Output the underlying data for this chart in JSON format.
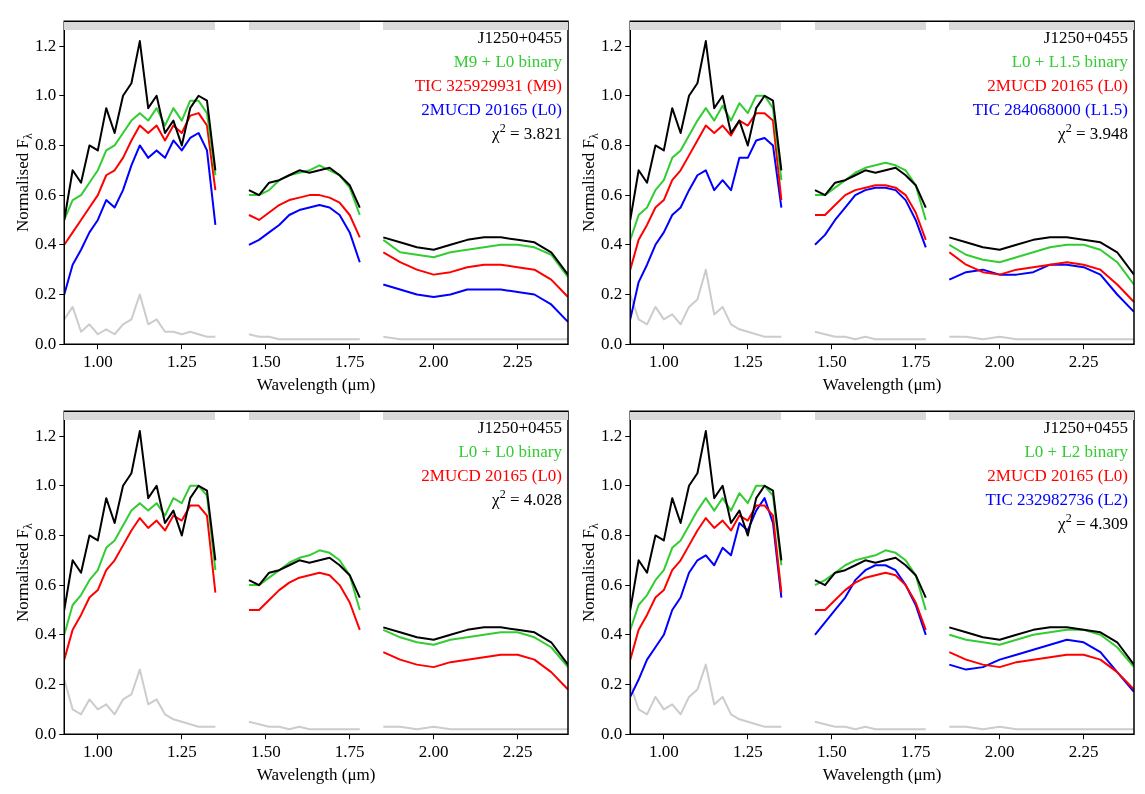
{
  "chart_data": [
    {
      "type": "line",
      "xlabel": "Wavelength (μm)",
      "ylabel": "Normalised F$_{λ}$",
      "xlim": [
        0.9,
        2.4
      ],
      "ylim": [
        0,
        1.3
      ],
      "xticks": [
        {
          "value": 1,
          "label": "1.00"
        },
        {
          "value": 1.25,
          "label": "1.25"
        },
        {
          "value": 1.5,
          "label": "1.50"
        },
        {
          "value": 1.75,
          "label": "1.75"
        },
        {
          "value": 2,
          "label": "2.00"
        },
        {
          "value": 2.25,
          "label": "2.25"
        }
      ],
      "yticks": [
        {
          "value": 0,
          "label": "0.0"
        },
        {
          "value": 0.2,
          "label": "0.2"
        },
        {
          "value": 0.4,
          "label": "0.4"
        },
        {
          "value": 0.6,
          "label": "0.6"
        },
        {
          "value": 0.8,
          "label": "0.8"
        },
        {
          "value": 1,
          "label": "1.0"
        },
        {
          "value": 1.2,
          "label": "1.2"
        }
      ],
      "legend": "top right",
      "marker": "none",
      "line_style": "solid",
      "grid": false,
      "annotations": [
        "χ$^{2}$ = 3.821"
      ],
      "x": [
        0.9,
        0.925,
        0.95,
        0.975,
        1.0,
        1.025,
        1.05,
        1.075,
        1.1,
        1.125,
        1.15,
        1.175,
        1.2,
        1.225,
        1.25,
        1.275,
        1.3,
        1.325,
        1.35,
        1.4,
        1.45,
        1.48,
        1.51,
        1.54,
        1.57,
        1.6,
        1.63,
        1.66,
        1.69,
        1.72,
        1.75,
        1.78,
        1.815,
        1.85,
        1.9,
        1.95,
        2.0,
        2.05,
        2.1,
        2.15,
        2.2,
        2.25,
        2.3,
        2.35,
        2.4
      ],
      "series": [
        {
          "name": "J1250+0455",
          "color": "#000000",
          "values": [
            0.5,
            0.7,
            0.65,
            0.8,
            0.78,
            0.95,
            0.85,
            1.0,
            1.05,
            1.22,
            0.95,
            1.0,
            0.85,
            0.9,
            0.8,
            0.95,
            1.0,
            0.98,
            0.7,
            null,
            0.62,
            0.6,
            0.65,
            0.66,
            0.68,
            0.7,
            0.69,
            0.7,
            0.71,
            0.68,
            0.64,
            0.55,
            null,
            0.43,
            0.41,
            0.39,
            0.38,
            0.4,
            0.42,
            0.43,
            0.43,
            0.42,
            0.41,
            0.37,
            0.28
          ]
        },
        {
          "name": "M9 + L0 binary",
          "color": "#33cc33",
          "values": [
            0.5,
            0.58,
            0.6,
            0.65,
            0.7,
            0.78,
            0.8,
            0.85,
            0.9,
            0.93,
            0.9,
            0.95,
            0.88,
            0.95,
            0.9,
            0.98,
            0.98,
            0.93,
            0.68,
            null,
            0.6,
            0.6,
            0.62,
            0.66,
            0.68,
            0.69,
            0.7,
            0.72,
            0.7,
            0.68,
            0.63,
            0.52,
            null,
            0.42,
            0.37,
            0.36,
            0.35,
            0.37,
            0.38,
            0.39,
            0.4,
            0.4,
            0.39,
            0.36,
            0.27
          ]
        },
        {
          "name": "TIC 325929931 (M9)",
          "color": "#ff0000",
          "values": [
            0.4,
            0.45,
            0.5,
            0.55,
            0.6,
            0.68,
            0.7,
            0.75,
            0.82,
            0.88,
            0.85,
            0.88,
            0.82,
            0.88,
            0.85,
            0.92,
            0.93,
            0.88,
            0.62,
            null,
            0.52,
            0.5,
            0.53,
            0.56,
            0.58,
            0.59,
            0.6,
            0.6,
            0.59,
            0.57,
            0.52,
            0.43,
            null,
            0.37,
            0.33,
            0.3,
            0.28,
            0.29,
            0.31,
            0.32,
            0.32,
            0.31,
            0.3,
            0.26,
            0.19
          ]
        },
        {
          "name": "2MUCD 20165 (L0)",
          "color": "#0000ff",
          "values": [
            0.2,
            0.32,
            0.38,
            0.45,
            0.5,
            0.58,
            0.55,
            0.62,
            0.72,
            0.8,
            0.75,
            0.78,
            0.75,
            0.82,
            0.78,
            0.83,
            0.85,
            0.78,
            0.48,
            null,
            0.4,
            0.42,
            0.45,
            0.48,
            0.52,
            0.54,
            0.55,
            0.56,
            0.55,
            0.52,
            0.45,
            0.33,
            null,
            0.24,
            0.22,
            0.2,
            0.19,
            0.2,
            0.22,
            0.22,
            0.22,
            0.21,
            0.2,
            0.16,
            0.09
          ]
        },
        {
          "color": "#cccccc",
          "values": [
            0.1,
            0.15,
            0.05,
            0.08,
            0.04,
            0.06,
            0.04,
            0.08,
            0.1,
            0.2,
            0.08,
            0.1,
            0.05,
            0.05,
            0.04,
            0.05,
            0.04,
            0.03,
            0.03,
            null,
            0.04,
            0.03,
            0.03,
            0.02,
            0.02,
            0.02,
            0.02,
            0.02,
            0.02,
            0.02,
            0.02,
            0.02,
            null,
            0.03,
            0.02,
            0.02,
            0.02,
            0.02,
            0.02,
            0.02,
            0.02,
            0.02,
            0.02,
            0.02,
            0.02
          ]
        }
      ]
    },
    {
      "type": "line",
      "xlabel": "Wavelength (μm)",
      "ylabel": "Normalised F$_{λ}$",
      "xlim": [
        0.9,
        2.4
      ],
      "ylim": [
        0,
        1.3
      ],
      "xticks": [
        {
          "value": 1,
          "label": "1.00"
        },
        {
          "value": 1.25,
          "label": "1.25"
        },
        {
          "value": 1.5,
          "label": "1.50"
        },
        {
          "value": 1.75,
          "label": "1.75"
        },
        {
          "value": 2,
          "label": "2.00"
        },
        {
          "value": 2.25,
          "label": "2.25"
        }
      ],
      "yticks": [
        {
          "value": 0,
          "label": "0.0"
        },
        {
          "value": 0.2,
          "label": "0.2"
        },
        {
          "value": 0.4,
          "label": "0.4"
        },
        {
          "value": 0.6,
          "label": "0.6"
        },
        {
          "value": 0.8,
          "label": "0.8"
        },
        {
          "value": 1,
          "label": "1.0"
        },
        {
          "value": 1.2,
          "label": "1.2"
        }
      ],
      "legend": "top right",
      "marker": "none",
      "line_style": "solid",
      "grid": false,
      "annotations": [
        "χ$^{2}$ = 3.948"
      ],
      "x": [
        0.9,
        0.925,
        0.95,
        0.975,
        1.0,
        1.025,
        1.05,
        1.075,
        1.1,
        1.125,
        1.15,
        1.175,
        1.2,
        1.225,
        1.25,
        1.275,
        1.3,
        1.325,
        1.35,
        1.4,
        1.45,
        1.48,
        1.51,
        1.54,
        1.57,
        1.6,
        1.63,
        1.66,
        1.69,
        1.72,
        1.75,
        1.78,
        1.815,
        1.85,
        1.9,
        1.95,
        2.0,
        2.05,
        2.1,
        2.15,
        2.2,
        2.25,
        2.3,
        2.35,
        2.4
      ],
      "series": [
        {
          "name": "J1250+0455",
          "color": "#000000",
          "values": [
            0.5,
            0.7,
            0.65,
            0.8,
            0.78,
            0.95,
            0.85,
            1.0,
            1.05,
            1.22,
            0.95,
            1.0,
            0.85,
            0.9,
            0.8,
            0.95,
            1.0,
            0.98,
            0.7,
            null,
            0.62,
            0.6,
            0.65,
            0.66,
            0.68,
            0.7,
            0.69,
            0.7,
            0.71,
            0.68,
            0.64,
            0.55,
            null,
            0.43,
            0.41,
            0.39,
            0.38,
            0.4,
            0.42,
            0.43,
            0.43,
            0.42,
            0.41,
            0.37,
            0.28
          ]
        },
        {
          "name": "L0 + L1.5 binary",
          "color": "#33cc33",
          "values": [
            0.42,
            0.52,
            0.55,
            0.62,
            0.66,
            0.75,
            0.78,
            0.84,
            0.9,
            0.95,
            0.9,
            0.96,
            0.9,
            0.97,
            0.93,
            1.0,
            1.0,
            0.95,
            0.66,
            null,
            0.6,
            0.6,
            0.63,
            0.66,
            0.69,
            0.71,
            0.72,
            0.73,
            0.72,
            0.7,
            0.64,
            0.5,
            null,
            0.4,
            0.36,
            0.34,
            0.33,
            0.35,
            0.37,
            0.39,
            0.4,
            0.4,
            0.38,
            0.33,
            0.24
          ]
        },
        {
          "name": "2MUCD 20165 (L0)",
          "color": "#ff0000",
          "values": [
            0.3,
            0.42,
            0.48,
            0.55,
            0.58,
            0.66,
            0.7,
            0.76,
            0.82,
            0.88,
            0.85,
            0.88,
            0.84,
            0.9,
            0.88,
            0.93,
            0.93,
            0.9,
            0.58,
            null,
            0.52,
            0.52,
            0.56,
            0.6,
            0.62,
            0.63,
            0.64,
            0.64,
            0.63,
            0.6,
            0.53,
            0.42,
            null,
            0.37,
            0.32,
            0.29,
            0.28,
            0.3,
            0.31,
            0.32,
            0.33,
            0.32,
            0.3,
            0.24,
            0.17
          ]
        },
        {
          "name": "TIC 284068000 (L1.5)",
          "color": "#0000ff",
          "values": [
            0.1,
            0.25,
            0.32,
            0.4,
            0.45,
            0.52,
            0.55,
            0.62,
            0.68,
            0.7,
            0.62,
            0.66,
            0.62,
            0.75,
            0.75,
            0.82,
            0.83,
            0.8,
            0.55,
            null,
            0.4,
            0.44,
            0.5,
            0.55,
            0.6,
            0.62,
            0.63,
            0.63,
            0.62,
            0.58,
            0.5,
            0.39,
            null,
            0.26,
            0.29,
            0.3,
            0.28,
            0.28,
            0.29,
            0.32,
            0.32,
            0.31,
            0.28,
            0.2,
            0.13
          ]
        },
        {
          "color": "#cccccc",
          "values": [
            0.2,
            0.1,
            0.08,
            0.15,
            0.1,
            0.12,
            0.08,
            0.15,
            0.18,
            0.3,
            0.12,
            0.15,
            0.08,
            0.06,
            0.05,
            0.04,
            0.03,
            0.03,
            0.03,
            null,
            0.05,
            0.04,
            0.03,
            0.03,
            0.02,
            0.03,
            0.02,
            0.02,
            0.02,
            0.02,
            0.02,
            0.02,
            null,
            0.03,
            0.03,
            0.02,
            0.03,
            0.02,
            0.02,
            0.02,
            0.02,
            0.02,
            0.02,
            0.02,
            0.02
          ]
        }
      ]
    },
    {
      "type": "line",
      "xlabel": "Wavelength (μm)",
      "ylabel": "Normalised F$_{λ}$",
      "xlim": [
        0.9,
        2.4
      ],
      "ylim": [
        0,
        1.3
      ],
      "xticks": [
        {
          "value": 1,
          "label": "1.00"
        },
        {
          "value": 1.25,
          "label": "1.25"
        },
        {
          "value": 1.5,
          "label": "1.50"
        },
        {
          "value": 1.75,
          "label": "1.75"
        },
        {
          "value": 2,
          "label": "2.00"
        },
        {
          "value": 2.25,
          "label": "2.25"
        }
      ],
      "yticks": [
        {
          "value": 0,
          "label": "0.0"
        },
        {
          "value": 0.2,
          "label": "0.2"
        },
        {
          "value": 0.4,
          "label": "0.4"
        },
        {
          "value": 0.6,
          "label": "0.6"
        },
        {
          "value": 0.8,
          "label": "0.8"
        },
        {
          "value": 1,
          "label": "1.0"
        },
        {
          "value": 1.2,
          "label": "1.2"
        }
      ],
      "legend": "top right",
      "marker": "none",
      "line_style": "solid",
      "grid": false,
      "annotations": [
        "χ$^{2}$ = 4.028"
      ],
      "x": [
        0.9,
        0.925,
        0.95,
        0.975,
        1.0,
        1.025,
        1.05,
        1.075,
        1.1,
        1.125,
        1.15,
        1.175,
        1.2,
        1.225,
        1.25,
        1.275,
        1.3,
        1.325,
        1.35,
        1.4,
        1.45,
        1.48,
        1.51,
        1.54,
        1.57,
        1.6,
        1.63,
        1.66,
        1.69,
        1.72,
        1.75,
        1.78,
        1.815,
        1.85,
        1.9,
        1.95,
        2.0,
        2.05,
        2.1,
        2.15,
        2.2,
        2.25,
        2.3,
        2.35,
        2.4
      ],
      "series": [
        {
          "name": "J1250+0455",
          "color": "#000000",
          "values": [
            0.5,
            0.7,
            0.65,
            0.8,
            0.78,
            0.95,
            0.85,
            1.0,
            1.05,
            1.22,
            0.95,
            1.0,
            0.85,
            0.9,
            0.8,
            0.95,
            1.0,
            0.98,
            0.7,
            null,
            0.62,
            0.6,
            0.65,
            0.66,
            0.68,
            0.7,
            0.69,
            0.7,
            0.71,
            0.68,
            0.64,
            0.55,
            null,
            0.43,
            0.41,
            0.39,
            0.38,
            0.4,
            0.42,
            0.43,
            0.43,
            0.42,
            0.41,
            0.37,
            0.28
          ]
        },
        {
          "name": "L0 + L0 binary",
          "color": "#33cc33",
          "values": [
            0.4,
            0.52,
            0.56,
            0.62,
            0.66,
            0.75,
            0.78,
            0.84,
            0.9,
            0.93,
            0.9,
            0.93,
            0.88,
            0.95,
            0.93,
            1.0,
            1.0,
            0.96,
            0.66,
            null,
            0.6,
            0.6,
            0.63,
            0.66,
            0.69,
            0.71,
            0.72,
            0.74,
            0.73,
            0.7,
            0.64,
            0.5,
            null,
            0.42,
            0.39,
            0.37,
            0.36,
            0.38,
            0.39,
            0.4,
            0.41,
            0.41,
            0.39,
            0.35,
            0.27
          ]
        },
        {
          "name": "2MUCD 20165 (L0)",
          "color": "#ff0000",
          "values": [
            0.3,
            0.42,
            0.48,
            0.55,
            0.58,
            0.66,
            0.7,
            0.76,
            0.82,
            0.87,
            0.83,
            0.86,
            0.82,
            0.88,
            0.86,
            0.92,
            0.92,
            0.88,
            0.57,
            null,
            0.5,
            0.5,
            0.54,
            0.58,
            0.61,
            0.63,
            0.64,
            0.65,
            0.64,
            0.6,
            0.53,
            0.42,
            null,
            0.33,
            0.3,
            0.28,
            0.27,
            0.29,
            0.3,
            0.31,
            0.32,
            0.32,
            0.3,
            0.25,
            0.18
          ]
        },
        {
          "color": "#cccccc",
          "values": [
            0.22,
            0.1,
            0.08,
            0.14,
            0.1,
            0.12,
            0.08,
            0.14,
            0.16,
            0.26,
            0.12,
            0.14,
            0.08,
            0.06,
            0.05,
            0.04,
            0.03,
            0.03,
            0.03,
            null,
            0.05,
            0.04,
            0.03,
            0.03,
            0.02,
            0.03,
            0.02,
            0.02,
            0.02,
            0.02,
            0.02,
            0.02,
            null,
            0.03,
            0.03,
            0.02,
            0.03,
            0.02,
            0.02,
            0.02,
            0.02,
            0.02,
            0.02,
            0.02,
            0.02
          ]
        }
      ]
    },
    {
      "type": "line",
      "xlabel": "Wavelength (μm)",
      "ylabel": "Normalised F$_{λ}$",
      "xlim": [
        0.9,
        2.4
      ],
      "ylim": [
        0,
        1.3
      ],
      "xticks": [
        {
          "value": 1,
          "label": "1.00"
        },
        {
          "value": 1.25,
          "label": "1.25"
        },
        {
          "value": 1.5,
          "label": "1.50"
        },
        {
          "value": 1.75,
          "label": "1.75"
        },
        {
          "value": 2,
          "label": "2.00"
        },
        {
          "value": 2.25,
          "label": "2.25"
        }
      ],
      "yticks": [
        {
          "value": 0,
          "label": "0.0"
        },
        {
          "value": 0.2,
          "label": "0.2"
        },
        {
          "value": 0.4,
          "label": "0.4"
        },
        {
          "value": 0.6,
          "label": "0.6"
        },
        {
          "value": 0.8,
          "label": "0.8"
        },
        {
          "value": 1,
          "label": "1.0"
        },
        {
          "value": 1.2,
          "label": "1.2"
        }
      ],
      "legend": "top right",
      "marker": "none",
      "line_style": "solid",
      "grid": false,
      "annotations": [
        "χ$^{2}$ = 4.309"
      ],
      "x": [
        0.9,
        0.925,
        0.95,
        0.975,
        1.0,
        1.025,
        1.05,
        1.075,
        1.1,
        1.125,
        1.15,
        1.175,
        1.2,
        1.225,
        1.25,
        1.275,
        1.3,
        1.325,
        1.35,
        1.4,
        1.45,
        1.48,
        1.51,
        1.54,
        1.57,
        1.6,
        1.63,
        1.66,
        1.69,
        1.72,
        1.75,
        1.78,
        1.815,
        1.85,
        1.9,
        1.95,
        2.0,
        2.05,
        2.1,
        2.15,
        2.2,
        2.25,
        2.3,
        2.35,
        2.4
      ],
      "series": [
        {
          "name": "J1250+0455",
          "color": "#000000",
          "values": [
            0.5,
            0.7,
            0.65,
            0.8,
            0.78,
            0.95,
            0.85,
            1.0,
            1.05,
            1.22,
            0.95,
            1.0,
            0.85,
            0.9,
            0.8,
            0.95,
            1.0,
            0.98,
            0.7,
            null,
            0.62,
            0.6,
            0.65,
            0.66,
            0.68,
            0.7,
            0.69,
            0.7,
            0.71,
            0.68,
            0.64,
            0.55,
            null,
            0.43,
            0.41,
            0.39,
            0.38,
            0.4,
            0.42,
            0.43,
            0.43,
            0.42,
            0.41,
            0.37,
            0.28
          ]
        },
        {
          "name": "L0 + L2 binary",
          "color": "#33cc33",
          "values": [
            0.42,
            0.52,
            0.56,
            0.62,
            0.66,
            0.75,
            0.78,
            0.84,
            0.9,
            0.95,
            0.9,
            0.95,
            0.9,
            0.97,
            0.93,
            1.0,
            1.0,
            0.96,
            0.68,
            null,
            0.6,
            0.62,
            0.65,
            0.68,
            0.7,
            0.71,
            0.72,
            0.74,
            0.73,
            0.7,
            0.64,
            0.5,
            null,
            0.4,
            0.38,
            0.37,
            0.36,
            0.38,
            0.4,
            0.41,
            0.42,
            0.42,
            0.4,
            0.35,
            0.27
          ]
        },
        {
          "name": "2MUCD 20165 (L0)",
          "color": "#ff0000",
          "values": [
            0.3,
            0.42,
            0.48,
            0.55,
            0.58,
            0.66,
            0.7,
            0.76,
            0.82,
            0.87,
            0.83,
            0.86,
            0.82,
            0.88,
            0.86,
            0.92,
            0.92,
            0.88,
            0.57,
            null,
            0.5,
            0.5,
            0.54,
            0.58,
            0.61,
            0.63,
            0.64,
            0.65,
            0.64,
            0.6,
            0.53,
            0.42,
            null,
            0.33,
            0.3,
            0.28,
            0.27,
            0.29,
            0.3,
            0.31,
            0.32,
            0.32,
            0.3,
            0.25,
            0.18
          ]
        },
        {
          "name": "TIC 232982736 (L2)",
          "color": "#0000ff",
          "values": [
            0.15,
            0.22,
            0.3,
            0.35,
            0.4,
            0.5,
            0.55,
            0.65,
            0.7,
            0.72,
            0.68,
            0.75,
            0.72,
            0.85,
            0.82,
            0.9,
            0.95,
            0.85,
            0.55,
            null,
            0.4,
            0.45,
            0.5,
            0.55,
            0.62,
            0.66,
            0.68,
            0.68,
            0.66,
            0.6,
            0.52,
            0.4,
            null,
            0.28,
            0.26,
            0.27,
            0.3,
            0.32,
            0.34,
            0.36,
            0.38,
            0.37,
            0.33,
            0.25,
            0.17
          ]
        },
        {
          "color": "#cccccc",
          "values": [
            0.2,
            0.1,
            0.08,
            0.15,
            0.1,
            0.12,
            0.08,
            0.15,
            0.18,
            0.28,
            0.12,
            0.15,
            0.08,
            0.06,
            0.05,
            0.04,
            0.03,
            0.03,
            0.03,
            null,
            0.05,
            0.04,
            0.03,
            0.03,
            0.02,
            0.03,
            0.02,
            0.02,
            0.02,
            0.02,
            0.02,
            0.02,
            null,
            0.03,
            0.03,
            0.02,
            0.03,
            0.02,
            0.02,
            0.02,
            0.02,
            0.02,
            0.02,
            0.02,
            0.02
          ]
        }
      ]
    }
  ]
}
